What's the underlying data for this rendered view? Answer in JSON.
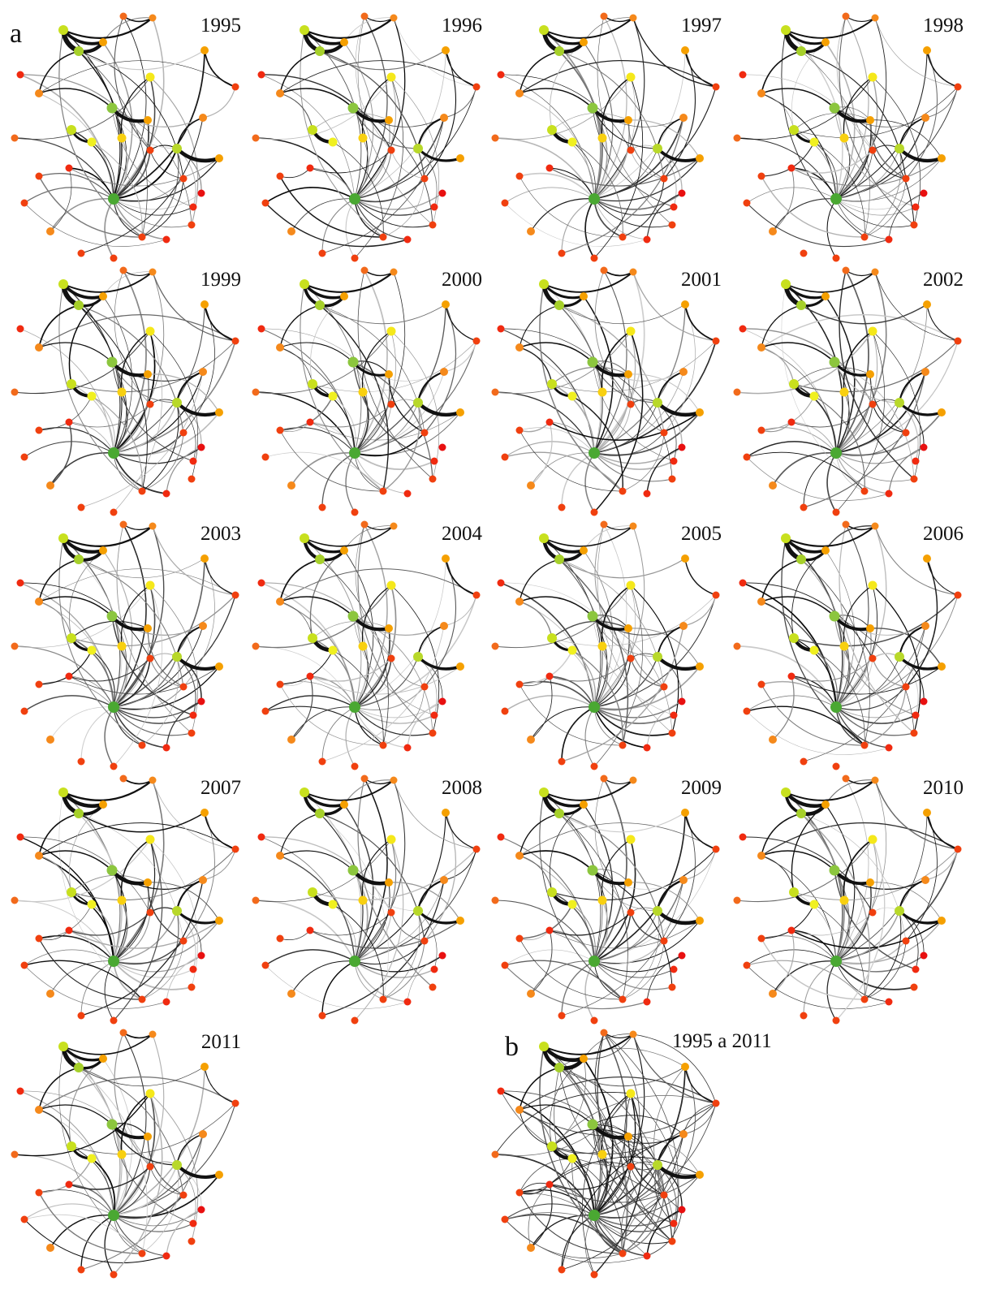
{
  "figure": {
    "panel_a_label": "a",
    "panel_b_label": "b",
    "years": [
      "1995",
      "1996",
      "1997",
      "1998",
      "1999",
      "2000",
      "2001",
      "2002",
      "2003",
      "2004",
      "2005",
      "2006",
      "2007",
      "2008",
      "2009",
      "2010",
      "2011"
    ],
    "aggregate_label": "1995 a 2011"
  }
}
